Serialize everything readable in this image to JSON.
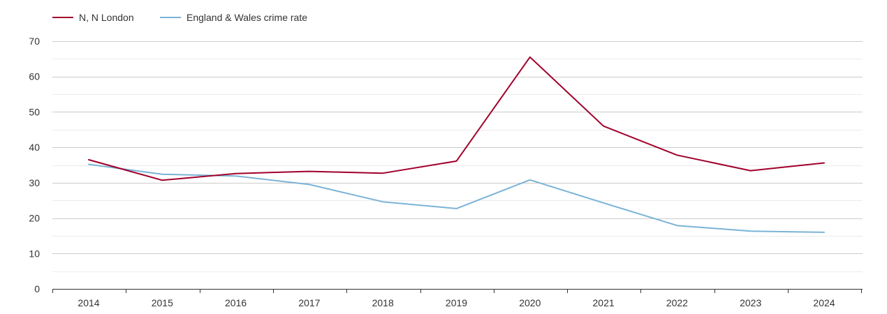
{
  "chart_data": {
    "type": "line",
    "title": "",
    "xlabel": "",
    "ylabel": "",
    "x": [
      "2014",
      "2015",
      "2016",
      "2017",
      "2018",
      "2019",
      "2020",
      "2021",
      "2022",
      "2023",
      "2024"
    ],
    "ylim": [
      0,
      70
    ],
    "yticks": [
      0,
      10,
      20,
      30,
      40,
      50,
      60,
      70
    ],
    "grid": "horizontal",
    "legend_position": "top-left",
    "series": [
      {
        "name": "N, N London",
        "color": "#a0002a",
        "values": [
          36.5,
          30.7,
          32.6,
          33.2,
          32.7,
          36.1,
          65.5,
          46.0,
          37.8,
          33.4,
          35.6
        ]
      },
      {
        "name": "England & Wales crime rate",
        "color": "#7ab3d6",
        "values": [
          35.2,
          32.4,
          31.9,
          29.5,
          24.6,
          22.7,
          30.8,
          24.3,
          17.9,
          16.3,
          16.0
        ]
      }
    ]
  }
}
